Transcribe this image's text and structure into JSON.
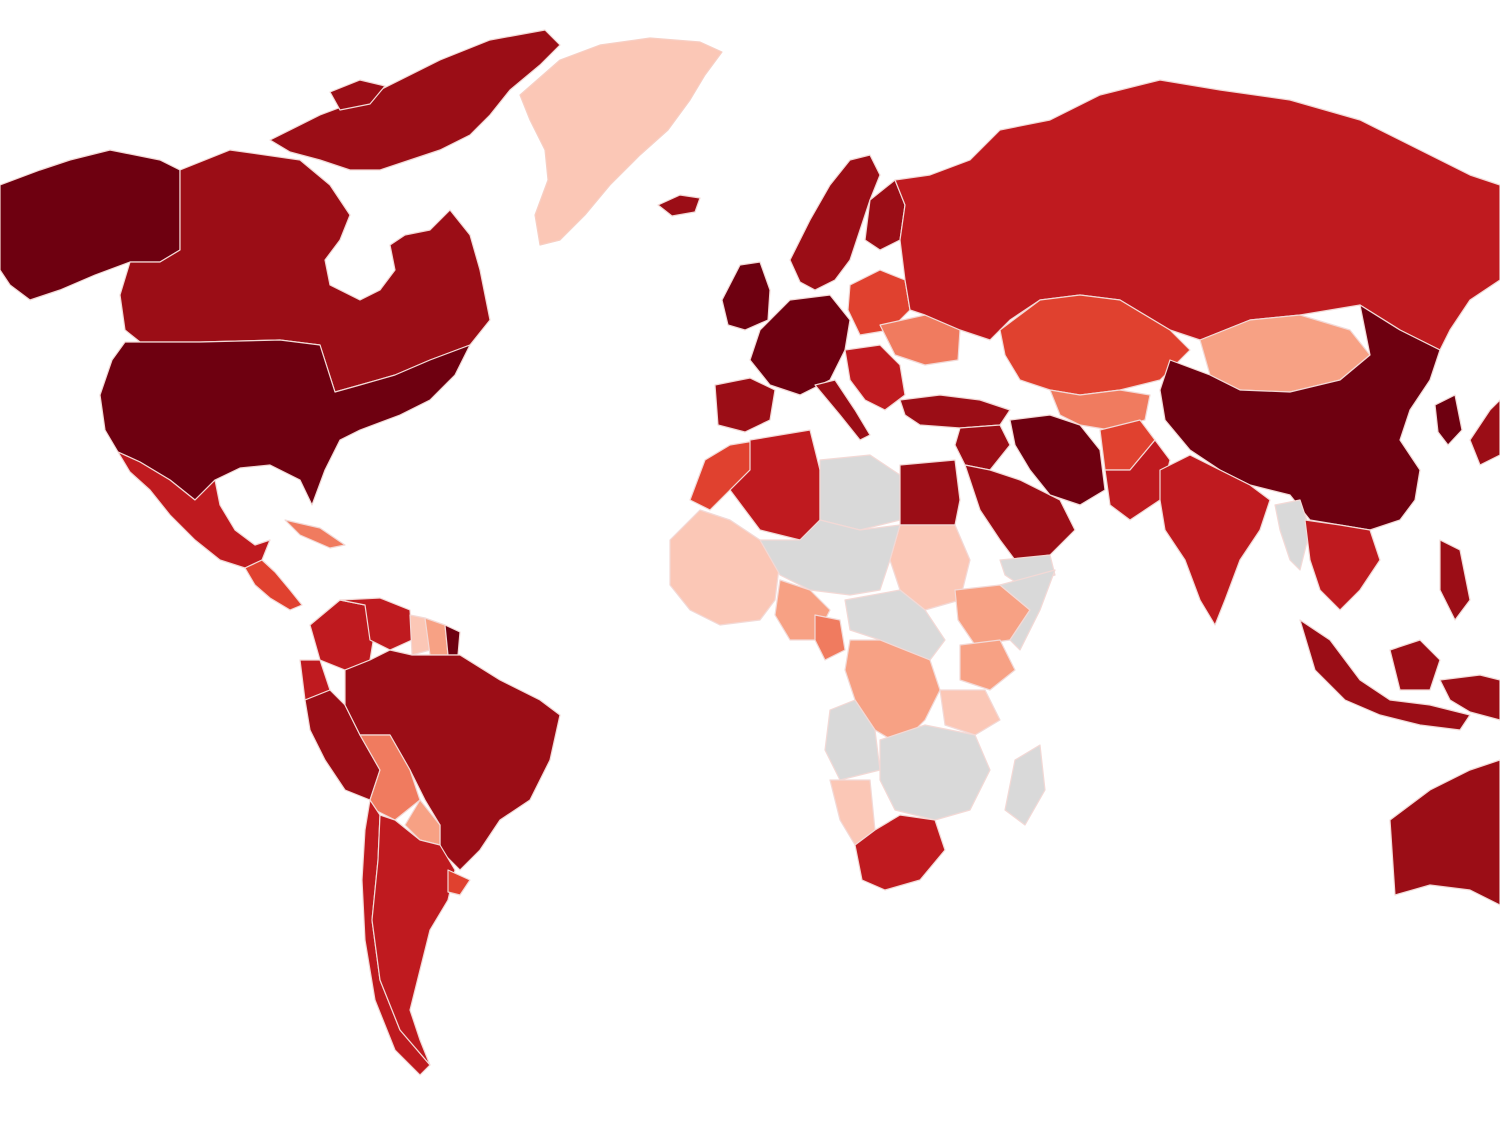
{
  "map": {
    "type": "choropleth",
    "projection": "world",
    "legend": null,
    "title": "",
    "scale": [
      {
        "level": 0,
        "color": "#d9d9d9",
        "meaning": "no data"
      },
      {
        "level": 1,
        "color": "#fbc7b6"
      },
      {
        "level": 2,
        "color": "#f7a184"
      },
      {
        "level": 3,
        "color": "#f07b5f"
      },
      {
        "level": 4,
        "color": "#e0412f"
      },
      {
        "level": 5,
        "color": "#bf1a1f"
      },
      {
        "level": 6,
        "color": "#9b0d16"
      },
      {
        "level": 7,
        "color": "#6e0010"
      }
    ],
    "regions": [
      {
        "id": "alaska",
        "level": 7
      },
      {
        "id": "canada",
        "level": 6
      },
      {
        "id": "canadian-arctic-islands",
        "level": 6
      },
      {
        "id": "greenland",
        "level": 1
      },
      {
        "id": "iceland",
        "level": 6
      },
      {
        "id": "usa",
        "level": 7
      },
      {
        "id": "mexico",
        "level": 5
      },
      {
        "id": "central-america",
        "level": 4
      },
      {
        "id": "cuba",
        "level": 3
      },
      {
        "id": "colombia",
        "level": 5
      },
      {
        "id": "venezuela",
        "level": 5
      },
      {
        "id": "guyana",
        "level": 1
      },
      {
        "id": "suriname",
        "level": 2
      },
      {
        "id": "french-guiana",
        "level": 7
      },
      {
        "id": "ecuador",
        "level": 5
      },
      {
        "id": "peru",
        "level": 6
      },
      {
        "id": "brazil",
        "level": 6
      },
      {
        "id": "bolivia",
        "level": 3
      },
      {
        "id": "paraguay",
        "level": 2
      },
      {
        "id": "chile",
        "level": 5
      },
      {
        "id": "argentina",
        "level": 5
      },
      {
        "id": "uruguay",
        "level": 4
      },
      {
        "id": "norway-sweden",
        "level": 6
      },
      {
        "id": "finland",
        "level": 6
      },
      {
        "id": "uk-ireland",
        "level": 7
      },
      {
        "id": "western-europe",
        "level": 7
      },
      {
        "id": "iberia",
        "level": 6
      },
      {
        "id": "italy",
        "level": 6
      },
      {
        "id": "eastern-europe",
        "level": 4
      },
      {
        "id": "ukraine",
        "level": 3
      },
      {
        "id": "balkans",
        "level": 5
      },
      {
        "id": "russia",
        "level": 5
      },
      {
        "id": "kazakhstan",
        "level": 4
      },
      {
        "id": "central-asia",
        "level": 3
      },
      {
        "id": "mongolia",
        "level": 2
      },
      {
        "id": "china",
        "level": 7
      },
      {
        "id": "japan",
        "level": 6
      },
      {
        "id": "korea",
        "level": 7
      },
      {
        "id": "turkey",
        "level": 6
      },
      {
        "id": "middle-east",
        "level": 6
      },
      {
        "id": "saudi-arabia",
        "level": 6
      },
      {
        "id": "yemen",
        "level": 0
      },
      {
        "id": "iran",
        "level": 7
      },
      {
        "id": "afghanistan",
        "level": 4
      },
      {
        "id": "pakistan",
        "level": 5
      },
      {
        "id": "india",
        "level": 5
      },
      {
        "id": "myanmar",
        "level": 0
      },
      {
        "id": "indochina",
        "level": 5
      },
      {
        "id": "philippines",
        "level": 6
      },
      {
        "id": "indonesia",
        "level": 6
      },
      {
        "id": "new-guinea",
        "level": 6
      },
      {
        "id": "australia",
        "level": 6
      },
      {
        "id": "morocco",
        "level": 4
      },
      {
        "id": "algeria",
        "level": 5
      },
      {
        "id": "libya",
        "level": 0
      },
      {
        "id": "egypt",
        "level": 6
      },
      {
        "id": "sudan",
        "level": 1
      },
      {
        "id": "west-africa",
        "level": 1
      },
      {
        "id": "sahel",
        "level": 0
      },
      {
        "id": "nigeria",
        "level": 2
      },
      {
        "id": "cameroon",
        "level": 3
      },
      {
        "id": "ethiopia",
        "level": 2
      },
      {
        "id": "somalia",
        "level": 0
      },
      {
        "id": "kenya",
        "level": 2
      },
      {
        "id": "central-africa",
        "level": 0
      },
      {
        "id": "dr-congo",
        "level": 2
      },
      {
        "id": "tanzania",
        "level": 1
      },
      {
        "id": "angola",
        "level": 0
      },
      {
        "id": "southern-central-africa",
        "level": 0
      },
      {
        "id": "namibia",
        "level": 1
      },
      {
        "id": "south-africa",
        "level": 5
      },
      {
        "id": "madagascar",
        "level": 0
      }
    ]
  }
}
